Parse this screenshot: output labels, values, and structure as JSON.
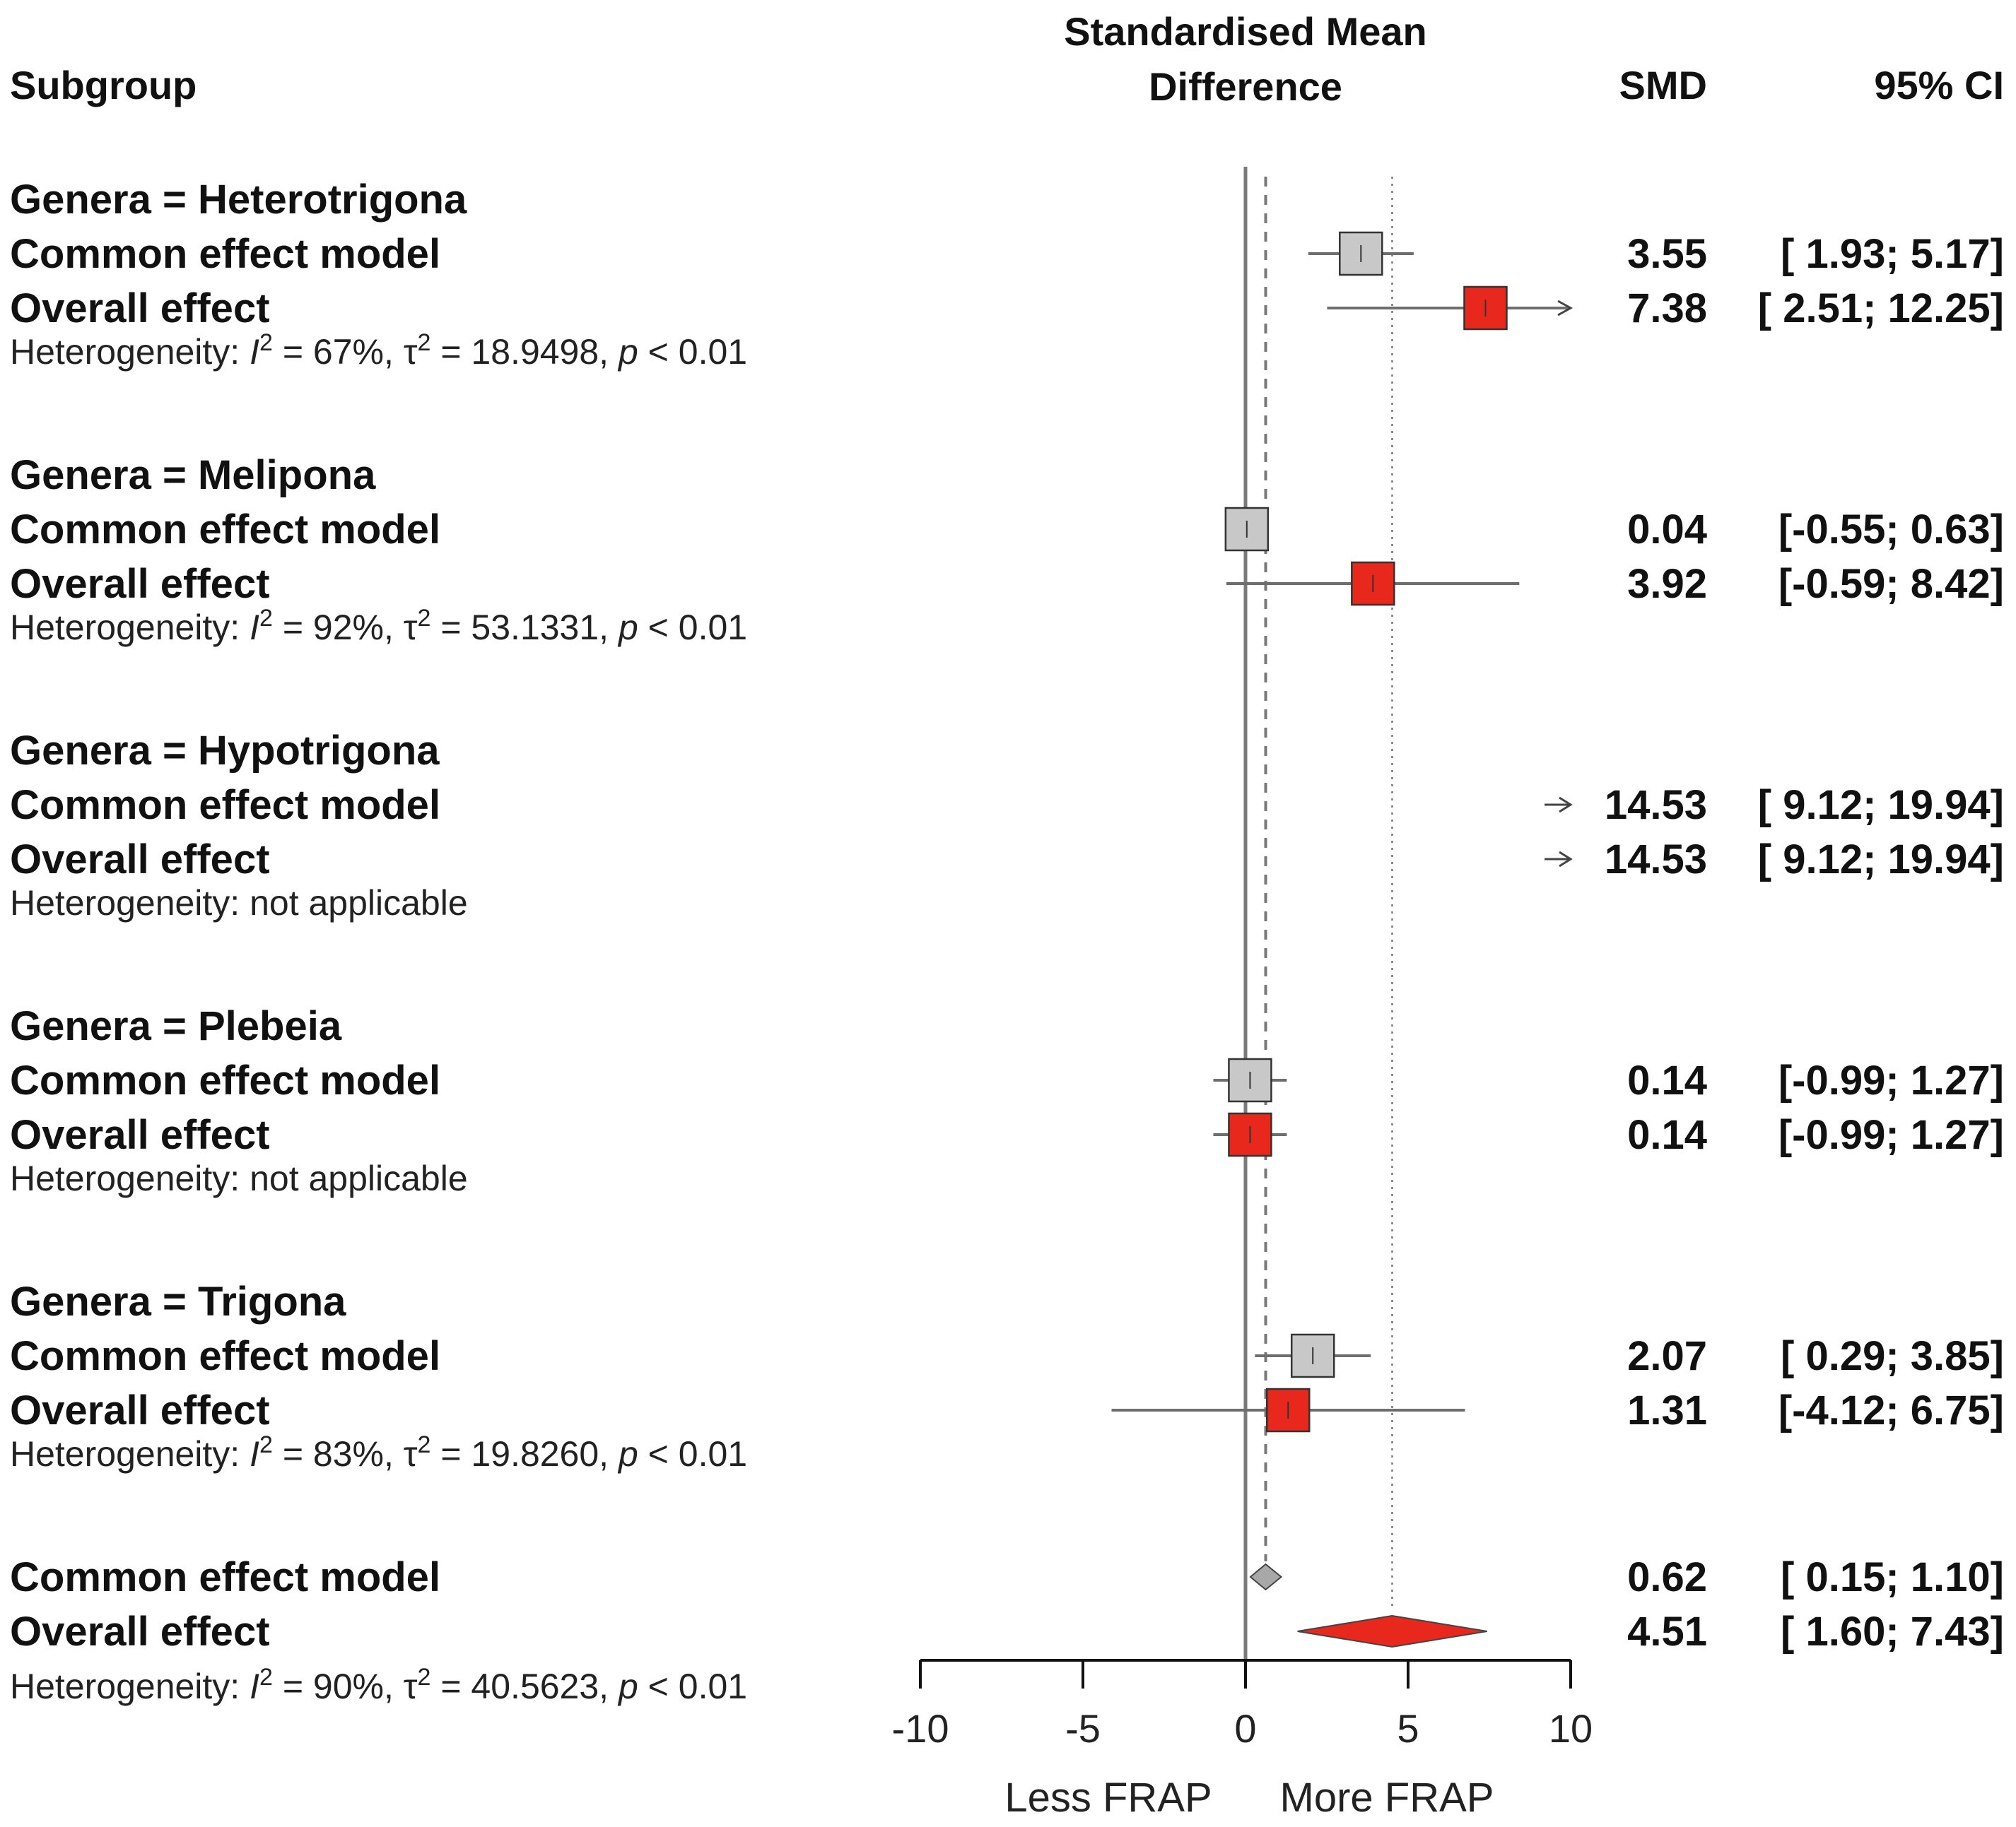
{
  "chart_data": {
    "type": "forest",
    "title_line1": "Standardised Mean",
    "title_line2": "Difference",
    "col_subgroup": "Subgroup",
    "col_smd": "SMD",
    "col_ci": "95% CI",
    "xlim": [
      -10,
      10
    ],
    "ticks": [
      -10,
      -5,
      0,
      5,
      10
    ],
    "tick_labels": [
      "-10",
      "-5",
      "0",
      "5",
      "10"
    ],
    "xlabel_left": "Less FRAP",
    "xlabel_right": "More FRAP",
    "ref_line": 0,
    "common_overall": 0.62,
    "random_overall": 4.51,
    "groups": [
      {
        "label": "Genera = Heterotrigona",
        "het_prefix": "Heterogeneity: ",
        "het_stats": {
          "I2": "67%",
          "tau2": "18.9498",
          "p": "< 0.01"
        },
        "rows": [
          {
            "label": "Common effect model",
            "smd": 3.55,
            "lo": 1.93,
            "hi": 5.17,
            "smd_text": "3.55",
            "ci_text": "[ 1.93;  5.17]",
            "kind": "common"
          },
          {
            "label": "Overall effect",
            "smd": 7.38,
            "lo": 2.51,
            "hi": 12.25,
            "smd_text": "7.38",
            "ci_text": "[ 2.51; 12.25]",
            "kind": "random"
          }
        ]
      },
      {
        "label": "Genera = Melipona",
        "het_prefix": "Heterogeneity: ",
        "het_stats": {
          "I2": "92%",
          "tau2": "53.1331",
          "p": "< 0.01"
        },
        "rows": [
          {
            "label": "Common effect model",
            "smd": 0.04,
            "lo": -0.55,
            "hi": 0.63,
            "smd_text": "0.04",
            "ci_text": "[-0.55;  0.63]",
            "kind": "common"
          },
          {
            "label": "Overall effect",
            "smd": 3.92,
            "lo": -0.59,
            "hi": 8.42,
            "smd_text": "3.92",
            "ci_text": "[-0.59;  8.42]",
            "kind": "random"
          }
        ]
      },
      {
        "label": "Genera = Hypotrigona",
        "het_text": "Heterogeneity: not applicable",
        "rows": [
          {
            "label": "Common effect model",
            "smd": 14.53,
            "lo": 9.12,
            "hi": 19.94,
            "smd_text": "14.53",
            "ci_text": "[ 9.12; 19.94]",
            "kind": "common"
          },
          {
            "label": "Overall effect",
            "smd": 14.53,
            "lo": 9.12,
            "hi": 19.94,
            "smd_text": "14.53",
            "ci_text": "[ 9.12; 19.94]",
            "kind": "random"
          }
        ]
      },
      {
        "label": "Genera = Plebeia",
        "het_text": "Heterogeneity: not applicable",
        "rows": [
          {
            "label": "Common effect model",
            "smd": 0.14,
            "lo": -0.99,
            "hi": 1.27,
            "smd_text": "0.14",
            "ci_text": "[-0.99;  1.27]",
            "kind": "common"
          },
          {
            "label": "Overall effect",
            "smd": 0.14,
            "lo": -0.99,
            "hi": 1.27,
            "smd_text": "0.14",
            "ci_text": "[-0.99;  1.27]",
            "kind": "random"
          }
        ]
      },
      {
        "label": "Genera = Trigona",
        "het_prefix": "Heterogeneity: ",
        "het_stats": {
          "I2": "83%",
          "tau2": "19.8260",
          "p": "< 0.01"
        },
        "rows": [
          {
            "label": "Common effect model",
            "smd": 2.07,
            "lo": 0.29,
            "hi": 3.85,
            "smd_text": "2.07",
            "ci_text": "[ 0.29;  3.85]",
            "kind": "common"
          },
          {
            "label": "Overall effect",
            "smd": 1.31,
            "lo": -4.12,
            "hi": 6.75,
            "smd_text": "1.31",
            "ci_text": "[-4.12;  6.75]",
            "kind": "random"
          }
        ]
      }
    ],
    "overall": {
      "het_prefix": "Heterogeneity: ",
      "het_stats": {
        "I2": "90%",
        "tau2": "40.5623",
        "p": "< 0.01"
      },
      "rows": [
        {
          "label": "Common effect model",
          "smd": 0.62,
          "lo": 0.15,
          "hi": 1.1,
          "smd_text": "0.62",
          "ci_text": "[ 0.15;  1.10]",
          "kind": "common_diamond"
        },
        {
          "label": "Overall effect",
          "smd": 4.51,
          "lo": 1.6,
          "hi": 7.43,
          "smd_text": "4.51",
          "ci_text": "[ 1.60;  7.43]",
          "kind": "random_diamond"
        }
      ]
    },
    "colors": {
      "common_fill": "#c8c8c8",
      "random_fill": "#e8281c",
      "ci_line": "#6e6e6e",
      "axis": "#111111",
      "ref_line": "#7a7a7a",
      "common_diamond": "#a8a8a8"
    }
  }
}
